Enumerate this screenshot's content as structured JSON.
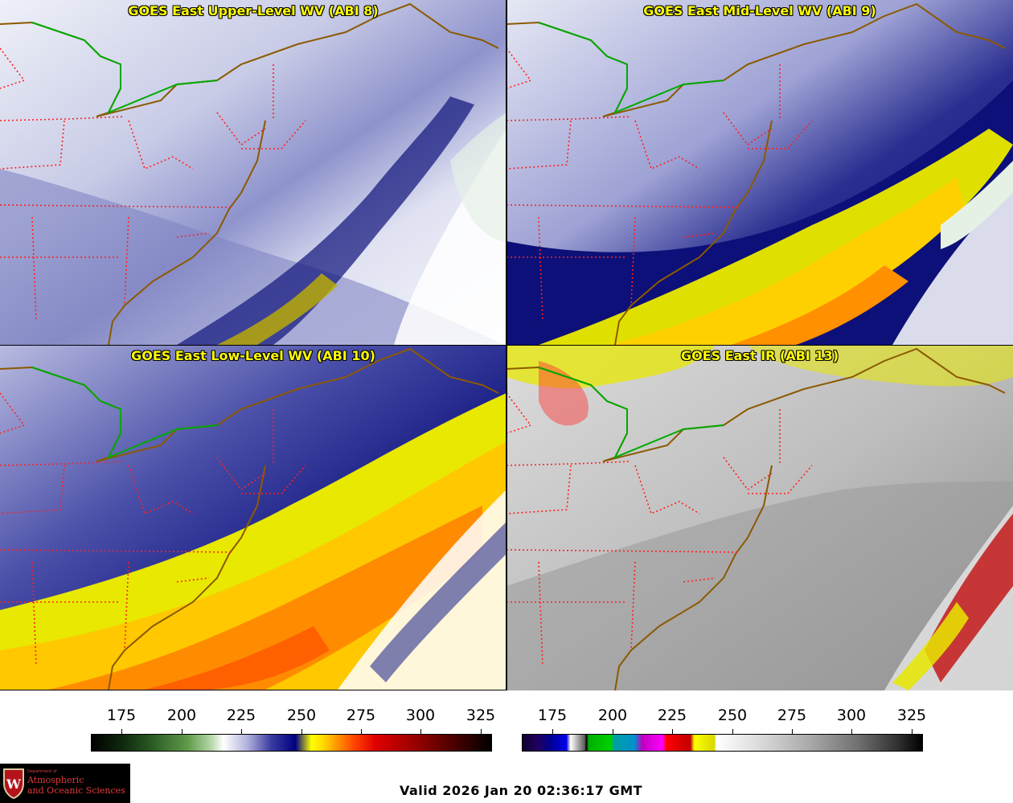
{
  "panels": [
    {
      "title": "GOES East Upper-Level WV (ABI 8)",
      "product": "upper-wv"
    },
    {
      "title": "GOES East Mid-Level WV (ABI 9)",
      "product": "mid-wv"
    },
    {
      "title": "GOES East Low-Level WV (ABI 10)",
      "product": "low-wv"
    },
    {
      "title": "GOES East IR (ABI 13)",
      "product": "ir"
    }
  ],
  "colorbars": {
    "wv": {
      "ticks": [
        "175",
        "200",
        "225",
        "250",
        "275",
        "300",
        "325"
      ],
      "range": [
        163,
        330
      ]
    },
    "ir": {
      "ticks": [
        "175",
        "200",
        "225",
        "250",
        "275",
        "300",
        "325"
      ],
      "range": [
        163,
        330
      ]
    }
  },
  "logo": {
    "department": "Department of",
    "name_line1": "Atmospheric",
    "name_line2": "and Oceanic Sciences",
    "crest_letter": "W"
  },
  "valid_time": "Valid 2026 Jan 20 02:36:17 GMT",
  "colors": {
    "title_text": "#ffff00",
    "state_borders": "#ff2020",
    "coastline": "#8b5a00",
    "great_lakes_border": "#00aa00"
  }
}
